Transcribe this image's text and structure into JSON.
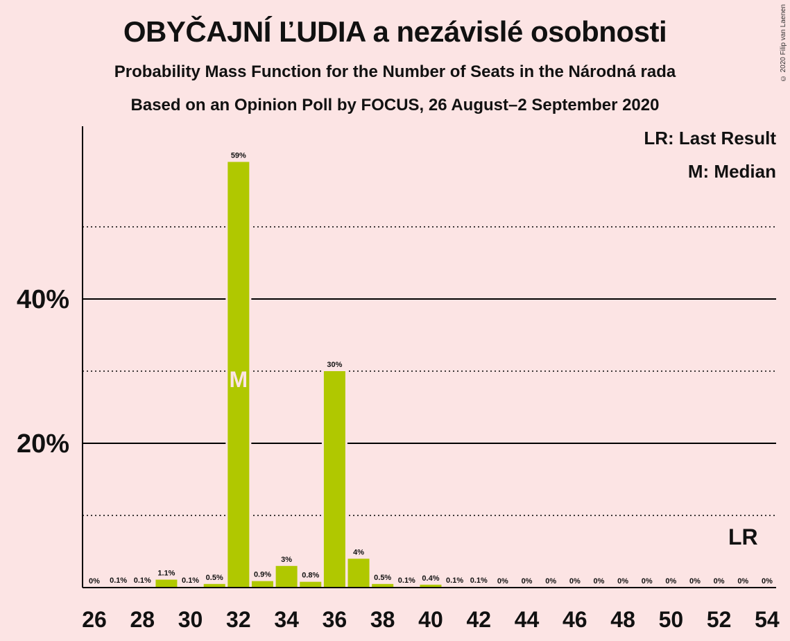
{
  "header": {
    "title": "OBYČAJNÍ ĽUDIA a nezávislé osobnosti",
    "subtitle1": "Probability Mass Function for the Number of Seats in the Národná rada",
    "subtitle2": "Based on an Opinion Poll by FOCUS, 26 August–2 September 2020",
    "copyright": "© 2020 Filip van Laenen"
  },
  "legend": {
    "last_result": "LR: Last Result",
    "median": "M: Median"
  },
  "colors": {
    "background": "#fce4e4",
    "bar": "#b0c800",
    "axis": "#000000",
    "median_label": "#fce4e4"
  },
  "chart_data": {
    "type": "bar",
    "title": "OBYČAJNÍ ĽUDIA a nezávislé osobnosti",
    "xlabel": "",
    "ylabel": "",
    "ylim": [
      0,
      64
    ],
    "categories": [
      26,
      27,
      28,
      29,
      30,
      31,
      32,
      33,
      34,
      35,
      36,
      37,
      38,
      39,
      40,
      41,
      42,
      43,
      44,
      45,
      46,
      47,
      48,
      49,
      50,
      51,
      52,
      53,
      54
    ],
    "values": [
      0,
      0.1,
      0.1,
      1.1,
      0.1,
      0.5,
      59,
      0.9,
      3,
      0.8,
      30,
      4,
      0.5,
      0.1,
      0.4,
      0.1,
      0.1,
      0,
      0,
      0,
      0,
      0,
      0,
      0,
      0,
      0,
      0,
      0,
      0
    ],
    "value_labels": [
      "0%",
      "0.1%",
      "0.1%",
      "1.1%",
      "0.1%",
      "0.5%",
      "59%",
      "0.9%",
      "3%",
      "0.8%",
      "30%",
      "4%",
      "0.5%",
      "0.1%",
      "0.4%",
      "0.1%",
      "0.1%",
      "0%",
      "0%",
      "0%",
      "0%",
      "0%",
      "0%",
      "0%",
      "0%",
      "0%",
      "0%",
      "0%",
      "0%"
    ],
    "x_tick_labels": [
      "26",
      "28",
      "30",
      "32",
      "34",
      "36",
      "38",
      "40",
      "42",
      "44",
      "46",
      "48",
      "50",
      "52",
      "54"
    ],
    "y_ticks_solid": [
      {
        "value": 20,
        "label": "20%"
      },
      {
        "value": 40,
        "label": "40%"
      }
    ],
    "y_gridlines_dotted": [
      10,
      30,
      50
    ],
    "median": {
      "seat": 32,
      "label": "M"
    },
    "last_result": {
      "seat": 53,
      "label": "LR"
    },
    "grid": true,
    "legend_position": "top-right"
  }
}
